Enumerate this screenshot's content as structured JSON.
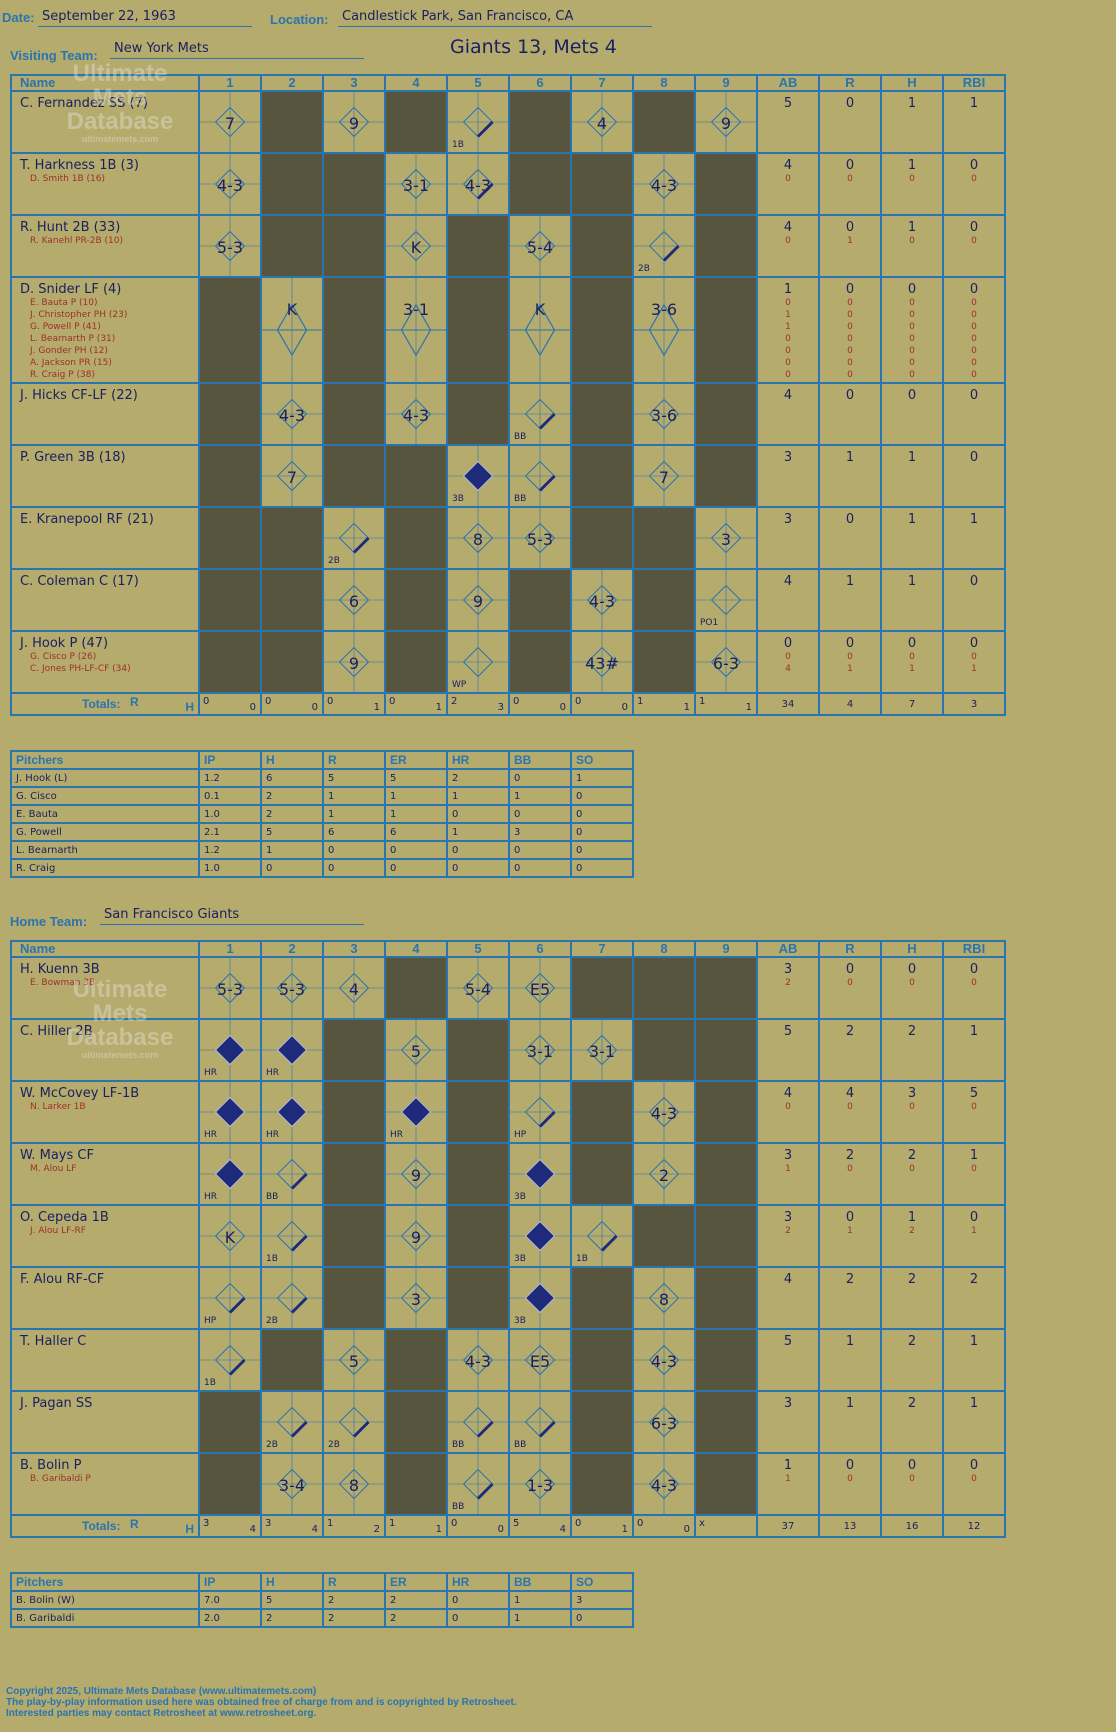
{
  "header": {
    "date_label": "Date:",
    "date": "September 22, 1963",
    "location_label": "Location:",
    "location": "Candlestick Park, San Francisco, CA",
    "title": "Giants 13, Mets 4"
  },
  "innings": [
    "1",
    "2",
    "3",
    "4",
    "5",
    "6",
    "7",
    "8",
    "9"
  ],
  "stat_headers": [
    "AB",
    "R",
    "H",
    "RBI"
  ],
  "name_header": "Name",
  "totals_label": "Totals:",
  "totals_r": "R",
  "totals_h": "H",
  "watermark": {
    "line1": "Ultimate",
    "line2": "Mets",
    "line3": "Database",
    "url": "ultimatemets.com"
  },
  "visiting": {
    "label": "Visiting Team:",
    "team": "New York Mets",
    "players": [
      {
        "name": "C. Fernandez SS (7)",
        "subs": [],
        "ab": "5",
        "r": "0",
        "h": "1",
        "rbi": "1",
        "sub_stats": []
      },
      {
        "name": "T. Harkness 1B (3)",
        "subs": [
          "D. Smith 1B (16)"
        ],
        "ab": "4",
        "r": "0",
        "h": "1",
        "rbi": "0",
        "sub_stats": [
          [
            "0",
            "0",
            "0",
            "0"
          ]
        ]
      },
      {
        "name": "R. Hunt 2B (33)",
        "subs": [
          "R. Kanehl PR-2B (10)"
        ],
        "ab": "4",
        "r": "0",
        "h": "1",
        "rbi": "0",
        "sub_stats": [
          [
            "0",
            "1",
            "0",
            "0"
          ]
        ]
      },
      {
        "name": "D. Snider LF (4)",
        "subs": [
          "E. Bauta P (10)",
          "J. Christopher PH (23)",
          "G. Powell P (41)",
          "L. Bearnarth P (31)",
          "J. Gonder PH (12)",
          "A. Jackson PR (15)",
          "R. Craig P (38)"
        ],
        "ab": "1",
        "r": "0",
        "h": "0",
        "rbi": "0",
        "sub_stats": [
          [
            "0",
            "0",
            "0",
            "0"
          ],
          [
            "1",
            "0",
            "0",
            "0"
          ],
          [
            "1",
            "0",
            "0",
            "0"
          ],
          [
            "0",
            "0",
            "0",
            "0"
          ],
          [
            "0",
            "0",
            "0",
            "0"
          ],
          [
            "0",
            "0",
            "0",
            "0"
          ],
          [
            "0",
            "0",
            "0",
            "0"
          ]
        ]
      },
      {
        "name": "J. Hicks CF-LF (22)",
        "subs": [],
        "ab": "4",
        "r": "0",
        "h": "0",
        "rbi": "0",
        "sub_stats": []
      },
      {
        "name": "P. Green 3B (18)",
        "subs": [],
        "ab": "3",
        "r": "1",
        "h": "1",
        "rbi": "0",
        "sub_stats": []
      },
      {
        "name": "E. Kranepool RF (21)",
        "subs": [],
        "ab": "3",
        "r": "0",
        "h": "1",
        "rbi": "1",
        "sub_stats": []
      },
      {
        "name": "C. Coleman C (17)",
        "subs": [],
        "ab": "4",
        "r": "1",
        "h": "1",
        "rbi": "0",
        "sub_stats": []
      },
      {
        "name": "J. Hook P (47)",
        "subs": [
          "G. Cisco P (26)",
          "C. Jones PH-LF-CF (34)"
        ],
        "ab": "0",
        "r": "0",
        "h": "0",
        "rbi": "0",
        "sub_stats": [
          [
            "0",
            "0",
            "0",
            "0"
          ],
          [
            "4",
            "1",
            "1",
            "1"
          ]
        ]
      }
    ],
    "grid": [
      [
        "7",
        null,
        "9",
        null,
        "/1B",
        null,
        "4",
        null,
        "9"
      ],
      [
        "4-3",
        null,
        null,
        "3-1",
        ">4-3",
        null,
        null,
        "4-3",
        null
      ],
      [
        "5-3",
        null,
        null,
        "K",
        null,
        "5-4",
        null,
        "2B",
        null
      ],
      [
        null,
        "K",
        null,
        "3-1",
        null,
        "K",
        null,
        "3-6",
        null
      ],
      [
        null,
        "4-3",
        null,
        "4-3",
        null,
        "BB",
        null,
        "3-6",
        null
      ],
      [
        null,
        "7",
        null,
        null,
        "3B",
        ">BB",
        null,
        "7",
        null
      ],
      [
        null,
        null,
        "2B",
        null,
        "8",
        "5-3",
        null,
        null,
        "3"
      ],
      [
        null,
        null,
        "6",
        null,
        "9",
        null,
        "4-3",
        null,
        "PO1"
      ],
      [
        null,
        null,
        "9",
        null,
        "WP",
        null,
        "43#",
        null,
        "6-3"
      ]
    ],
    "totals": [
      [
        "0",
        "0"
      ],
      [
        "0",
        "0"
      ],
      [
        "0",
        "1"
      ],
      [
        "0",
        "1"
      ],
      [
        "2",
        "3"
      ],
      [
        "0",
        "0"
      ],
      [
        "0",
        "0"
      ],
      [
        "1",
        "1"
      ],
      [
        "1",
        "1"
      ]
    ],
    "totals_stats": [
      "34",
      "4",
      "7",
      "3"
    ]
  },
  "visiting_pitchers": {
    "headers": [
      "Pitchers",
      "IP",
      "H",
      "R",
      "ER",
      "HR",
      "BB",
      "SO"
    ],
    "rows": [
      [
        "J. Hook (L)",
        "1.2",
        "6",
        "5",
        "5",
        "2",
        "0",
        "1"
      ],
      [
        "G. Cisco",
        "0.1",
        "2",
        "1",
        "1",
        "1",
        "1",
        "0"
      ],
      [
        "E. Bauta",
        "1.0",
        "2",
        "1",
        "1",
        "0",
        "0",
        "0"
      ],
      [
        "G. Powell",
        "2.1",
        "5",
        "6",
        "6",
        "1",
        "3",
        "0"
      ],
      [
        "L. Bearnarth",
        "1.2",
        "1",
        "0",
        "0",
        "0",
        "0",
        "0"
      ],
      [
        "R. Craig",
        "1.0",
        "0",
        "0",
        "0",
        "0",
        "0",
        "0"
      ]
    ]
  },
  "home": {
    "label": "Home Team:",
    "team": "San Francisco Giants",
    "players": [
      {
        "name": "H. Kuenn 3B",
        "subs": [
          "E. Bowman 3B"
        ],
        "ab": "3",
        "r": "0",
        "h": "0",
        "rbi": "0",
        "sub_stats": [
          [
            "2",
            "0",
            "0",
            "0"
          ]
        ]
      },
      {
        "name": "C. Hiller 2B",
        "subs": [],
        "ab": "5",
        "r": "2",
        "h": "2",
        "rbi": "1",
        "sub_stats": []
      },
      {
        "name": "W. McCovey LF-1B",
        "subs": [
          "N. Larker 1B"
        ],
        "ab": "4",
        "r": "4",
        "h": "3",
        "rbi": "5",
        "sub_stats": [
          [
            "0",
            "0",
            "0",
            "0"
          ]
        ]
      },
      {
        "name": "W. Mays CF",
        "subs": [
          "M. Alou LF"
        ],
        "ab": "3",
        "r": "2",
        "h": "2",
        "rbi": "1",
        "sub_stats": [
          [
            "1",
            "0",
            "0",
            "0"
          ]
        ]
      },
      {
        "name": "O. Cepeda 1B",
        "subs": [
          "J. Alou LF-RF"
        ],
        "ab": "3",
        "r": "0",
        "h": "1",
        "rbi": "0",
        "sub_stats": [
          [
            "2",
            "1",
            "2",
            "1"
          ]
        ]
      },
      {
        "name": "F. Alou RF-CF",
        "subs": [],
        "ab": "4",
        "r": "2",
        "h": "2",
        "rbi": "2",
        "sub_stats": []
      },
      {
        "name": "T. Haller C",
        "subs": [],
        "ab": "5",
        "r": "1",
        "h": "2",
        "rbi": "1",
        "sub_stats": []
      },
      {
        "name": "J. Pagan SS",
        "subs": [],
        "ab": "3",
        "r": "1",
        "h": "2",
        "rbi": "1",
        "sub_stats": []
      },
      {
        "name": "B. Bolin P",
        "subs": [
          "B. Garibaldi P"
        ],
        "ab": "1",
        "r": "0",
        "h": "0",
        "rbi": "0",
        "sub_stats": [
          [
            "1",
            "0",
            "0",
            "0"
          ]
        ]
      }
    ],
    "grid": [
      [
        "5-3",
        "5-3",
        "4",
        null,
        "5-4",
        "E5",
        null,
        null,
        null
      ],
      [
        "HR",
        "HR",
        null,
        "5",
        null,
        "3-1",
        "3-1",
        null,
        null
      ],
      [
        "HR",
        "HR",
        null,
        "HR",
        null,
        "HP",
        null,
        "4-3",
        null
      ],
      [
        "HR",
        "BB",
        null,
        "9",
        null,
        "3B",
        null,
        "2",
        null
      ],
      [
        "K",
        "1B",
        null,
        "9",
        null,
        "3B",
        "1B",
        null,
        null
      ],
      [
        "HP",
        "2B",
        null,
        "3",
        null,
        "3B",
        null,
        "8",
        null
      ],
      [
        "1B",
        null,
        "5",
        null,
        "4-3",
        "E5",
        null,
        "4-3",
        null
      ],
      [
        null,
        "2B",
        "2B",
        null,
        "BB",
        "BB",
        null,
        "6-3",
        null
      ],
      [
        null,
        "3-4",
        "8",
        null,
        "BB",
        "1-3",
        null,
        "4-3",
        null
      ]
    ],
    "totals": [
      [
        "3",
        "4"
      ],
      [
        "3",
        "4"
      ],
      [
        "1",
        "2"
      ],
      [
        "1",
        "1"
      ],
      [
        "0",
        "0"
      ],
      [
        "5",
        "4"
      ],
      [
        "0",
        "1"
      ],
      [
        "0",
        "0"
      ],
      [
        "x",
        ""
      ]
    ],
    "totals_stats": [
      "37",
      "13",
      "16",
      "12"
    ]
  },
  "home_pitchers": {
    "headers": [
      "Pitchers",
      "IP",
      "H",
      "R",
      "ER",
      "HR",
      "BB",
      "SO"
    ],
    "rows": [
      [
        "B. Bolin (W)",
        "7.0",
        "5",
        "2",
        "2",
        "0",
        "1",
        "3"
      ],
      [
        "B. Garibaldi",
        "2.0",
        "2",
        "2",
        "2",
        "0",
        "1",
        "0"
      ]
    ]
  },
  "footer": {
    "line1": "Copyright 2025, Ultimate Mets Database (www.ultimatemets.com)",
    "line2": "The play-by-play information used here was obtained free of charge from and is copyrighted by Retrosheet.",
    "line3": "Interested parties may contact Retrosheet at www.retrosheet.org."
  },
  "colors": {
    "background": "#b5ab6d",
    "grid": "#2a74b0",
    "dark": "#58553f",
    "ink": "#1b2160",
    "run": "#1e2a7a",
    "red": "#a0302a"
  }
}
